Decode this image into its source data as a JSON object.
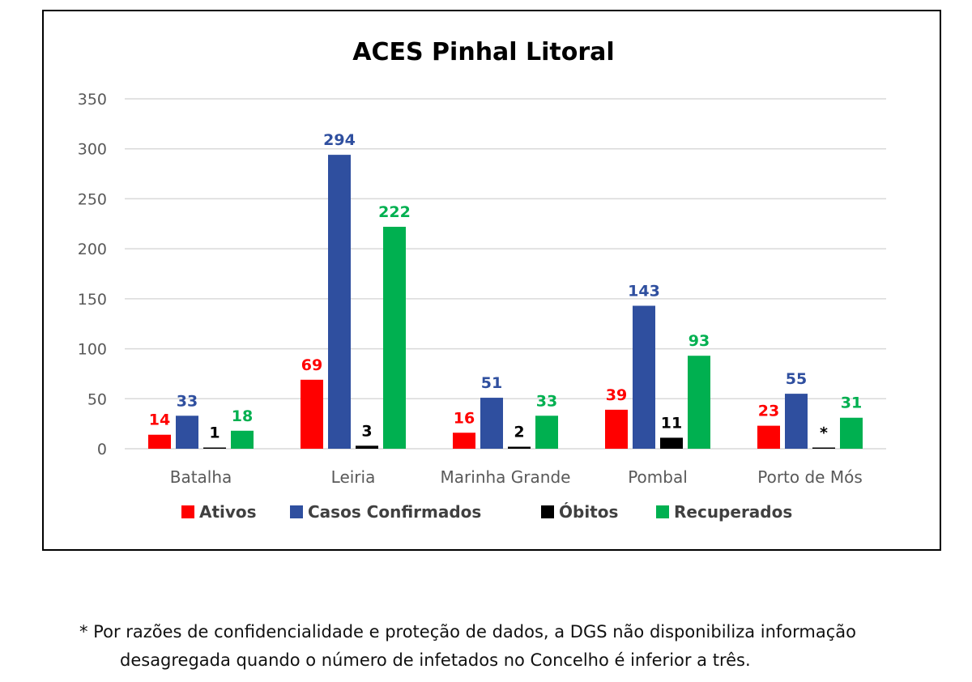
{
  "chart_data": {
    "type": "bar",
    "title": "ACES Pinhal Litoral",
    "xlabel": "",
    "ylabel": "",
    "ylim": [
      0,
      350
    ],
    "yticks": [
      0,
      50,
      100,
      150,
      200,
      250,
      300,
      350
    ],
    "grid": true,
    "legend_position": "bottom",
    "categories": [
      "Batalha",
      "Leiria",
      "Marinha Grande",
      "Pombal",
      "Porto de Mós"
    ],
    "series": [
      {
        "name": "Ativos",
        "color": "#ff0000",
        "values": [
          14,
          69,
          16,
          39,
          23
        ],
        "labels": [
          "14",
          "69",
          "16",
          "39",
          "23"
        ]
      },
      {
        "name": "Casos Confirmados",
        "color": "#2f4f9f",
        "values": [
          33,
          294,
          51,
          143,
          55
        ],
        "labels": [
          "33",
          "294",
          "51",
          "143",
          "55"
        ]
      },
      {
        "name": "Óbitos",
        "color": "#000000",
        "values": [
          1,
          3,
          2,
          11,
          0
        ],
        "labels": [
          "1",
          "3",
          "2",
          "11",
          "*"
        ]
      },
      {
        "name": "Recuperados",
        "color": "#00b050",
        "values": [
          18,
          222,
          33,
          93,
          31
        ],
        "labels": [
          "18",
          "222",
          "33",
          "93",
          "31"
        ]
      }
    ]
  },
  "footnote": {
    "line1": "* Por razões de confidencialidade e proteção de dados, a DGS não disponibiliza informação",
    "line2": "desagregada quando o número de infetados no Concelho é inferior a três."
  }
}
